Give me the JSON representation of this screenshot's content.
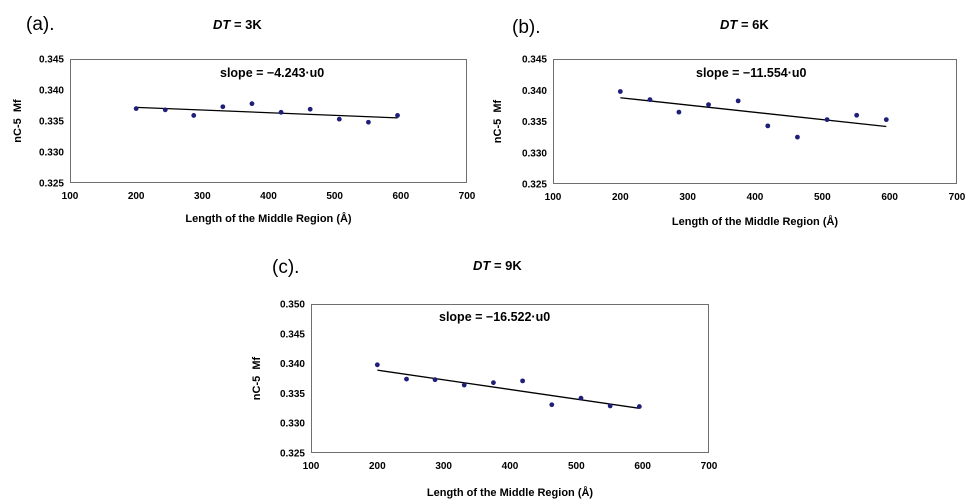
{
  "chart_data": [
    {
      "id": "a",
      "type": "scatter",
      "panel_label": "(a).",
      "title_prefix": "DT",
      "title_suffix": " = 3K",
      "xlabel": "Length of the Middle Region (Å)",
      "ylabel": "nC-5  Mf",
      "xlim": [
        100,
        700
      ],
      "ylim": [
        0.325,
        0.345
      ],
      "xticks": [
        100,
        200,
        300,
        400,
        500,
        600,
        700
      ],
      "yticks": [
        "0.325",
        "0.330",
        "0.335",
        "0.340",
        "0.345"
      ],
      "annotation": "slope = −4.243·u0",
      "marker_color": "#1f1f7a",
      "line_color": "#000000",
      "points": [
        {
          "x": 200,
          "y": 0.337
        },
        {
          "x": 244,
          "y": 0.3368
        },
        {
          "x": 287,
          "y": 0.3359
        },
        {
          "x": 331,
          "y": 0.3373
        },
        {
          "x": 375,
          "y": 0.3378
        },
        {
          "x": 419,
          "y": 0.3364
        },
        {
          "x": 463,
          "y": 0.3369
        },
        {
          "x": 507,
          "y": 0.3353
        },
        {
          "x": 551,
          "y": 0.3348
        },
        {
          "x": 595,
          "y": 0.3359
        }
      ],
      "fit": {
        "x": [
          200,
          595
        ],
        "y": [
          0.3372,
          0.3355
        ]
      }
    },
    {
      "id": "b",
      "type": "scatter",
      "panel_label": "(b).",
      "title_prefix": "DT",
      "title_suffix": " = 6K",
      "xlabel": "Length of the Middle Region (Å)",
      "ylabel": "nC-5  Mf",
      "xlim": [
        100,
        700
      ],
      "ylim": [
        0.325,
        0.345
      ],
      "xticks": [
        100,
        200,
        300,
        400,
        500,
        600,
        700
      ],
      "yticks": [
        "0.325",
        "0.330",
        "0.335",
        "0.340",
        "0.345"
      ],
      "annotation": "slope = −11.554·u0",
      "marker_color": "#1f1f7a",
      "line_color": "#000000",
      "points": [
        {
          "x": 200,
          "y": 0.3398
        },
        {
          "x": 244,
          "y": 0.3385
        },
        {
          "x": 287,
          "y": 0.3365
        },
        {
          "x": 331,
          "y": 0.3377
        },
        {
          "x": 375,
          "y": 0.3383
        },
        {
          "x": 419,
          "y": 0.3343
        },
        {
          "x": 463,
          "y": 0.3325
        },
        {
          "x": 507,
          "y": 0.3353
        },
        {
          "x": 551,
          "y": 0.336
        },
        {
          "x": 595,
          "y": 0.3353
        }
      ],
      "fit": {
        "x": [
          200,
          595
        ],
        "y": [
          0.3388,
          0.3342
        ]
      }
    },
    {
      "id": "c",
      "type": "scatter",
      "panel_label": "(c).",
      "title_prefix": "DT",
      "title_suffix": " = 9K",
      "xlabel": "Length of the Middle Region (Å)",
      "ylabel": "nC-5  Mf",
      "xlim": [
        100,
        700
      ],
      "ylim": [
        0.325,
        0.35
      ],
      "xticks": [
        100,
        200,
        300,
        400,
        500,
        600,
        700
      ],
      "yticks": [
        "0.325",
        "0.330",
        "0.335",
        "0.340",
        "0.345",
        "0.350"
      ],
      "annotation": "slope = −16.522·u0",
      "marker_color": "#1f1f7a",
      "line_color": "#000000",
      "points": [
        {
          "x": 200,
          "y": 0.3398
        },
        {
          "x": 244,
          "y": 0.3374
        },
        {
          "x": 287,
          "y": 0.3373
        },
        {
          "x": 331,
          "y": 0.3364
        },
        {
          "x": 375,
          "y": 0.3368
        },
        {
          "x": 419,
          "y": 0.3371
        },
        {
          "x": 463,
          "y": 0.3331
        },
        {
          "x": 507,
          "y": 0.3342
        },
        {
          "x": 551,
          "y": 0.3329
        },
        {
          "x": 595,
          "y": 0.3328
        }
      ],
      "fit": {
        "x": [
          200,
          595
        ],
        "y": [
          0.3389,
          0.3325
        ]
      }
    }
  ]
}
